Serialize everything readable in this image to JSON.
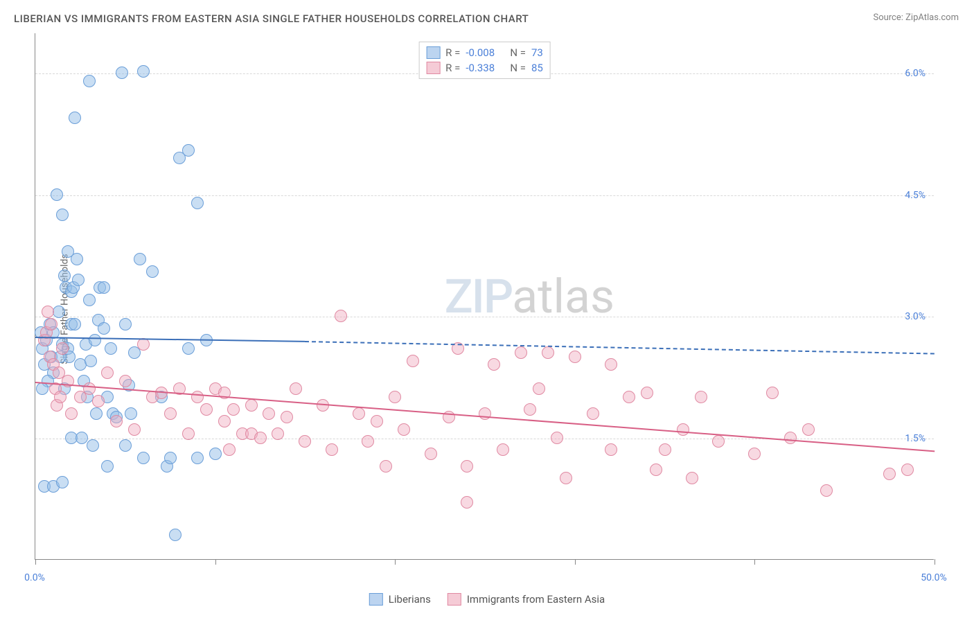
{
  "title": "LIBERIAN VS IMMIGRANTS FROM EASTERN ASIA SINGLE FATHER HOUSEHOLDS CORRELATION CHART",
  "source": "Source: ZipAtlas.com",
  "y_axis_label": "Single Father Households",
  "watermark": {
    "part1": "ZIP",
    "part2": "atlas"
  },
  "chart": {
    "type": "scatter",
    "background_color": "#ffffff",
    "grid_color": "#d8d8d8",
    "axis_color": "#888888",
    "xlim": [
      0,
      50
    ],
    "ylim": [
      0,
      6.5
    ],
    "x_ticks": [
      0,
      10,
      20,
      30,
      40,
      50
    ],
    "x_tick_labels": {
      "0": "0.0%",
      "50": "50.0%"
    },
    "y_ticks": [
      1.5,
      3.0,
      4.5,
      6.0
    ],
    "y_tick_labels": [
      "1.5%",
      "3.0%",
      "4.5%",
      "6.0%"
    ],
    "x_tick_label_color": "#4a7fd8",
    "y_tick_label_color": "#4a7fd8",
    "point_radius": 9,
    "point_border_width": 1,
    "title_fontsize": 15,
    "label_fontsize": 14
  },
  "legend_top": {
    "rows": [
      {
        "swatch_fill": "#bcd4f0",
        "swatch_border": "#6a9ed8",
        "r_label": "R =",
        "r_value": "-0.008",
        "n_label": "N =",
        "n_value": "73",
        "value_color": "#4a7fd8",
        "label_color": "#666"
      },
      {
        "swatch_fill": "#f5cbd6",
        "swatch_border": "#e089a2",
        "r_label": "R =",
        "r_value": "-0.338",
        "n_label": "N =",
        "n_value": "85",
        "value_color": "#4a7fd8",
        "label_color": "#666"
      }
    ]
  },
  "legend_bottom": {
    "items": [
      {
        "swatch_fill": "#bcd4f0",
        "swatch_border": "#6a9ed8",
        "label": "Liberians"
      },
      {
        "swatch_fill": "#f5cbd6",
        "swatch_border": "#e089a2",
        "label": "Immigrants from Eastern Asia"
      }
    ]
  },
  "series": [
    {
      "name": "Liberians",
      "fill": "rgba(147, 189, 232, 0.5)",
      "stroke": "#6a9ed8",
      "trend": {
        "color": "#3b6fb8",
        "x1": 0,
        "y1": 2.75,
        "x2_solid": 15,
        "y2_solid": 2.7,
        "x2_dash": 50,
        "y2_dash": 2.55
      },
      "points": [
        [
          0.3,
          2.8
        ],
        [
          0.4,
          2.6
        ],
        [
          0.5,
          2.4
        ],
        [
          0.6,
          2.7
        ],
        [
          0.8,
          2.9
        ],
        [
          0.9,
          2.5
        ],
        [
          1.0,
          2.3
        ],
        [
          1.0,
          2.8
        ],
        [
          1.2,
          4.5
        ],
        [
          1.5,
          4.25
        ],
        [
          1.6,
          3.5
        ],
        [
          1.7,
          3.35
        ],
        [
          1.5,
          2.65
        ],
        [
          1.8,
          2.6
        ],
        [
          1.9,
          2.5
        ],
        [
          2.0,
          2.9
        ],
        [
          2.0,
          3.3
        ],
        [
          2.1,
          3.35
        ],
        [
          2.2,
          5.45
        ],
        [
          2.3,
          3.7
        ],
        [
          2.4,
          3.45
        ],
        [
          2.5,
          2.4
        ],
        [
          2.7,
          2.2
        ],
        [
          2.8,
          2.65
        ],
        [
          3.0,
          3.2
        ],
        [
          3.0,
          5.9
        ],
        [
          3.1,
          2.45
        ],
        [
          3.3,
          2.7
        ],
        [
          3.5,
          2.95
        ],
        [
          3.6,
          3.35
        ],
        [
          3.8,
          3.35
        ],
        [
          4.0,
          2.0
        ],
        [
          4.2,
          2.6
        ],
        [
          4.3,
          1.8
        ],
        [
          4.5,
          1.75
        ],
        [
          4.8,
          6.0
        ],
        [
          5.0,
          2.9
        ],
        [
          5.0,
          1.4
        ],
        [
          5.2,
          2.15
        ],
        [
          5.5,
          2.55
        ],
        [
          5.8,
          3.7
        ],
        [
          6.0,
          1.25
        ],
        [
          6.0,
          6.02
        ],
        [
          6.5,
          3.55
        ],
        [
          7.0,
          2.0
        ],
        [
          7.3,
          1.15
        ],
        [
          7.5,
          1.25
        ],
        [
          8.0,
          4.95
        ],
        [
          8.5,
          5.05
        ],
        [
          8.5,
          2.6
        ],
        [
          9.0,
          4.4
        ],
        [
          9.0,
          1.25
        ],
        [
          9.5,
          2.7
        ],
        [
          10.0,
          1.3
        ],
        [
          1.3,
          3.05
        ],
        [
          1.4,
          2.5
        ],
        [
          1.6,
          2.1
        ],
        [
          0.7,
          2.2
        ],
        [
          0.4,
          2.1
        ],
        [
          2.0,
          1.5
        ],
        [
          2.6,
          1.5
        ],
        [
          3.2,
          1.4
        ],
        [
          1.8,
          3.8
        ],
        [
          0.5,
          0.9
        ],
        [
          1.0,
          0.9
        ],
        [
          1.5,
          0.95
        ],
        [
          3.4,
          1.8
        ],
        [
          4.0,
          1.15
        ],
        [
          5.3,
          1.8
        ],
        [
          7.8,
          0.3
        ],
        [
          2.2,
          2.9
        ],
        [
          2.9,
          2.0
        ],
        [
          3.8,
          2.85
        ]
      ]
    },
    {
      "name": "Immigrants from Eastern Asia",
      "fill": "rgba(240, 170, 190, 0.45)",
      "stroke": "#e089a2",
      "trend": {
        "color": "#d85f85",
        "x1": 0,
        "y1": 2.2,
        "x2_solid": 50,
        "y2_solid": 1.35
      },
      "points": [
        [
          0.5,
          2.7
        ],
        [
          0.6,
          2.8
        ],
        [
          0.7,
          3.05
        ],
        [
          0.8,
          2.5
        ],
        [
          0.9,
          2.9
        ],
        [
          1.0,
          2.4
        ],
        [
          1.1,
          2.1
        ],
        [
          1.2,
          1.9
        ],
        [
          1.3,
          2.3
        ],
        [
          1.4,
          2.0
        ],
        [
          1.5,
          2.6
        ],
        [
          1.8,
          2.2
        ],
        [
          2.0,
          1.8
        ],
        [
          2.5,
          2.0
        ],
        [
          3.0,
          2.1
        ],
        [
          3.5,
          1.95
        ],
        [
          4.0,
          2.3
        ],
        [
          4.5,
          1.7
        ],
        [
          5.0,
          2.2
        ],
        [
          5.5,
          1.6
        ],
        [
          6.0,
          2.65
        ],
        [
          6.5,
          2.0
        ],
        [
          7.0,
          2.05
        ],
        [
          7.5,
          1.8
        ],
        [
          8.0,
          2.1
        ],
        [
          8.5,
          1.55
        ],
        [
          9.0,
          2.0
        ],
        [
          9.5,
          1.85
        ],
        [
          10.0,
          2.1
        ],
        [
          10.5,
          1.7
        ],
        [
          10.5,
          2.05
        ],
        [
          11.0,
          1.85
        ],
        [
          11.5,
          1.55
        ],
        [
          12.0,
          1.9
        ],
        [
          12.0,
          1.55
        ],
        [
          12.5,
          1.5
        ],
        [
          13.0,
          1.8
        ],
        [
          13.5,
          1.55
        ],
        [
          14.0,
          1.75
        ],
        [
          15.0,
          1.45
        ],
        [
          16.0,
          1.9
        ],
        [
          16.5,
          1.35
        ],
        [
          17.0,
          3.0
        ],
        [
          18.0,
          1.8
        ],
        [
          18.5,
          1.45
        ],
        [
          19.0,
          1.7
        ],
        [
          19.5,
          1.15
        ],
        [
          20.0,
          2.0
        ],
        [
          20.5,
          1.6
        ],
        [
          21.0,
          2.45
        ],
        [
          22.0,
          1.3
        ],
        [
          23.0,
          1.75
        ],
        [
          23.5,
          2.6
        ],
        [
          24.0,
          1.15
        ],
        [
          24.0,
          0.7
        ],
        [
          25.0,
          1.8
        ],
        [
          25.5,
          2.4
        ],
        [
          26.0,
          1.35
        ],
        [
          27.0,
          2.55
        ],
        [
          27.5,
          1.85
        ],
        [
          28.0,
          2.1
        ],
        [
          28.5,
          2.55
        ],
        [
          29.0,
          1.5
        ],
        [
          29.5,
          1.0
        ],
        [
          30.0,
          2.5
        ],
        [
          31.0,
          1.8
        ],
        [
          32.0,
          2.4
        ],
        [
          32.0,
          1.35
        ],
        [
          33.0,
          2.0
        ],
        [
          34.0,
          2.05
        ],
        [
          34.5,
          1.1
        ],
        [
          35.0,
          1.35
        ],
        [
          36.0,
          1.6
        ],
        [
          36.5,
          1.0
        ],
        [
          37.0,
          2.0
        ],
        [
          38.0,
          1.45
        ],
        [
          40.0,
          1.3
        ],
        [
          41.0,
          2.05
        ],
        [
          42.0,
          1.5
        ],
        [
          43.0,
          1.6
        ],
        [
          44.0,
          0.85
        ],
        [
          47.5,
          1.05
        ],
        [
          48.5,
          1.1
        ],
        [
          10.8,
          1.35
        ],
        [
          14.5,
          2.1
        ]
      ]
    }
  ]
}
